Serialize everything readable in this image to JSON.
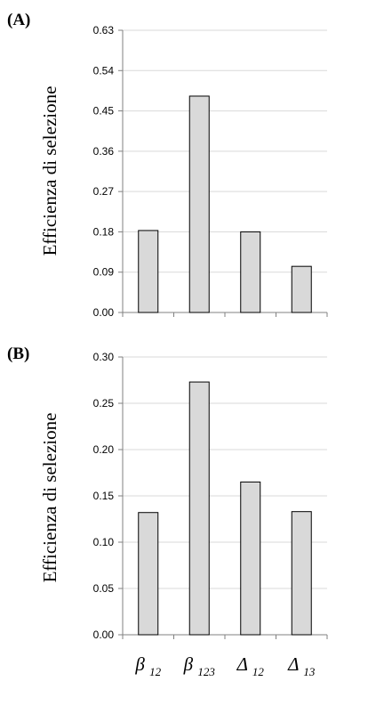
{
  "chart_data": [
    {
      "panel": "(A)",
      "type": "bar",
      "categories": [
        "β 12",
        "β 123",
        "Δ 12",
        "Δ 13"
      ],
      "values": [
        0.183,
        0.483,
        0.18,
        0.103
      ],
      "ylabel": "Efficienza di selezione",
      "ylim": [
        0,
        0.63
      ],
      "yticks": [
        "0.00",
        "0.09",
        "0.18",
        "0.27",
        "0.36",
        "0.45",
        "0.54",
        "0.63"
      ],
      "show_categories": false,
      "grid": true
    },
    {
      "panel": "(B)",
      "type": "bar",
      "categories": [
        "β 12",
        "β 123",
        "Δ 12",
        "Δ 13"
      ],
      "values": [
        0.132,
        0.273,
        0.165,
        0.133
      ],
      "ylabel": "Efficienza di selezione",
      "ylim": [
        0,
        0.3
      ],
      "yticks": [
        "0.00",
        "0.05",
        "0.10",
        "0.15",
        "0.20",
        "0.25",
        "0.30"
      ],
      "show_categories": true,
      "grid": true
    }
  ],
  "category_labels": [
    {
      "symbol": "β",
      "sub": "12"
    },
    {
      "symbol": "β",
      "sub": "123"
    },
    {
      "symbol": "Δ",
      "sub": "12"
    },
    {
      "symbol": "Δ",
      "sub": "13"
    }
  ],
  "colors": {
    "bar_fill": "#d9d9d9",
    "bar_stroke": "#000000",
    "grid": "#d9d9d9",
    "axis": "#808080"
  }
}
